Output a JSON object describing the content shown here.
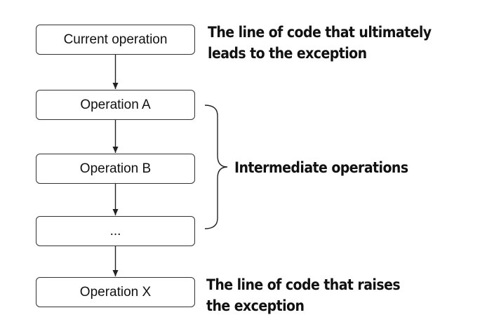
{
  "boxes": {
    "current": "Current operation",
    "a": "Operation A",
    "b": "Operation B",
    "ellipsis": "...",
    "x": "Operation X"
  },
  "annotations": {
    "top": {
      "line1": "The line of code that ultimately",
      "line2": "leads to the exception"
    },
    "middle": "Intermediate operations",
    "bottom": {
      "line1": "The line of code that raises",
      "line2": "the exception"
    }
  },
  "colors": {
    "stroke": "#333333",
    "text": "#111111",
    "background": "#ffffff"
  }
}
